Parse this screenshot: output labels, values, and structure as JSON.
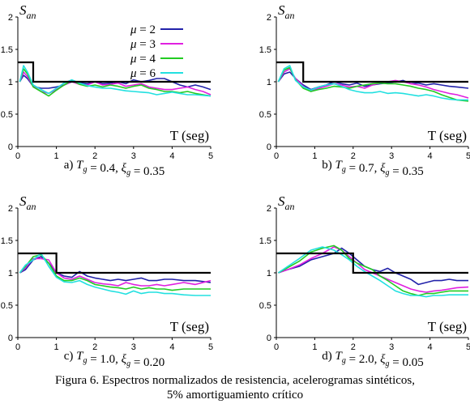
{
  "figure": {
    "caption_line1": "Figura 6.   Espectros normalizados de resistencia, acelerogramas sintéticos,",
    "caption_line2": "5% amortiguamiento crítico"
  },
  "colors": {
    "mu2": "#2222aa",
    "mu3": "#e020e0",
    "mu4": "#22cc22",
    "mu6": "#22e0e0",
    "design": "#000000"
  },
  "legend": [
    "μ = 2",
    "μ = 3",
    "μ = 4",
    "μ = 6"
  ],
  "chart_data": [
    {
      "type": "line",
      "id": "a",
      "ylabel": "S_an",
      "xlabel": "T (seg)",
      "subtitle": "a) T_g = 0.4, ξ_g = 0.35",
      "xlim": [
        0,
        5
      ],
      "ylim": [
        0,
        2
      ],
      "xticks": [
        "0",
        "1",
        "2",
        "3",
        "4",
        "5"
      ],
      "yticks": [
        "0",
        "0.5",
        "1",
        "1.5",
        "2"
      ],
      "legend_placement": "top-right",
      "design": {
        "x": [
          0,
          0.4,
          0.4,
          5
        ],
        "y": [
          1.3,
          1.3,
          1.0,
          1.0
        ]
      },
      "series": [
        {
          "name": "μ = 2",
          "color": "#2222aa",
          "x": [
            0.05,
            0.15,
            0.25,
            0.4,
            0.6,
            0.8,
            1.0,
            1.2,
            1.4,
            1.6,
            1.8,
            2.0,
            2.2,
            2.4,
            2.6,
            2.8,
            3.0,
            3.2,
            3.4,
            3.6,
            3.8,
            4.0,
            4.2,
            4.4,
            4.6,
            4.8,
            5.0
          ],
          "y": [
            1.0,
            1.1,
            1.05,
            0.93,
            0.9,
            0.9,
            0.92,
            0.95,
            1.0,
            0.98,
            0.97,
            1.0,
            0.97,
            0.98,
            1.0,
            0.97,
            1.03,
            1.0,
            1.02,
            1.05,
            1.05,
            1.0,
            0.95,
            0.92,
            0.95,
            0.92,
            0.88
          ]
        },
        {
          "name": "μ = 3",
          "color": "#e020e0",
          "x": [
            0.05,
            0.15,
            0.25,
            0.4,
            0.6,
            0.8,
            1.0,
            1.2,
            1.4,
            1.6,
            1.8,
            2.0,
            2.2,
            2.4,
            2.6,
            2.8,
            3.0,
            3.2,
            3.4,
            3.6,
            3.8,
            4.0,
            4.2,
            4.4,
            4.6,
            4.8,
            5.0
          ],
          "y": [
            1.0,
            1.15,
            1.08,
            0.93,
            0.85,
            0.82,
            0.88,
            0.95,
            1.0,
            0.96,
            0.95,
            1.0,
            0.95,
            0.96,
            0.98,
            0.93,
            0.95,
            0.97,
            0.92,
            0.9,
            0.88,
            0.88,
            0.9,
            0.92,
            0.88,
            0.85,
            0.8
          ]
        },
        {
          "name": "μ = 4",
          "color": "#22cc22",
          "x": [
            0.05,
            0.15,
            0.25,
            0.4,
            0.6,
            0.8,
            1.0,
            1.2,
            1.4,
            1.6,
            1.8,
            2.0,
            2.2,
            2.4,
            2.6,
            2.8,
            3.0,
            3.2,
            3.4,
            3.6,
            3.8,
            4.0,
            4.2,
            4.4,
            4.6,
            4.8,
            5.0
          ],
          "y": [
            1.0,
            1.2,
            1.12,
            0.92,
            0.85,
            0.78,
            0.87,
            0.95,
            1.02,
            0.96,
            0.93,
            0.95,
            0.92,
            0.95,
            0.93,
            0.9,
            0.93,
            0.95,
            0.9,
            0.88,
            0.85,
            0.85,
            0.83,
            0.85,
            0.82,
            0.8,
            0.78
          ]
        },
        {
          "name": "μ = 6",
          "color": "#22e0e0",
          "x": [
            0.05,
            0.15,
            0.25,
            0.4,
            0.6,
            0.8,
            1.0,
            1.2,
            1.4,
            1.6,
            1.8,
            2.0,
            2.2,
            2.4,
            2.6,
            2.8,
            3.0,
            3.2,
            3.4,
            3.6,
            3.8,
            4.0,
            4.2,
            4.4,
            4.6,
            4.8,
            5.0
          ],
          "y": [
            1.0,
            1.25,
            1.15,
            0.95,
            0.88,
            0.82,
            0.9,
            0.98,
            1.03,
            0.98,
            0.94,
            0.92,
            0.9,
            0.9,
            0.88,
            0.86,
            0.85,
            0.84,
            0.83,
            0.8,
            0.82,
            0.84,
            0.82,
            0.8,
            0.8,
            0.79,
            0.78
          ]
        }
      ]
    },
    {
      "type": "line",
      "id": "b",
      "ylabel": "S_an",
      "xlabel": "T (seg)",
      "subtitle": "b) T_g = 0.7, ξ_g = 0.35",
      "xlim": [
        0,
        5
      ],
      "ylim": [
        0,
        2
      ],
      "xticks": [
        "0",
        "1",
        "2",
        "3",
        "4",
        "5"
      ],
      "yticks": [
        "0",
        "0.5",
        "1",
        "1.5",
        "2"
      ],
      "design": {
        "x": [
          0,
          0.7,
          0.7,
          5
        ],
        "y": [
          1.3,
          1.3,
          1.0,
          1.0
        ]
      },
      "series": [
        {
          "name": "μ = 2",
          "color": "#2222aa",
          "x": [
            0.05,
            0.2,
            0.35,
            0.5,
            0.7,
            0.9,
            1.1,
            1.3,
            1.5,
            1.7,
            1.9,
            2.1,
            2.3,
            2.5,
            2.7,
            2.9,
            3.1,
            3.3,
            3.5,
            3.7,
            3.9,
            4.1,
            4.3,
            4.5,
            4.7,
            5.0
          ],
          "y": [
            1.0,
            1.12,
            1.15,
            1.05,
            0.95,
            0.88,
            0.92,
            0.95,
            1.0,
            0.97,
            0.95,
            0.98,
            0.93,
            0.95,
            0.97,
            0.98,
            1.0,
            1.02,
            0.97,
            0.98,
            0.95,
            0.97,
            0.95,
            0.93,
            0.92,
            0.9
          ]
        },
        {
          "name": "μ = 3",
          "color": "#e020e0",
          "x": [
            0.05,
            0.2,
            0.35,
            0.5,
            0.7,
            0.9,
            1.1,
            1.3,
            1.5,
            1.7,
            1.9,
            2.1,
            2.3,
            2.5,
            2.7,
            2.9,
            3.1,
            3.3,
            3.5,
            3.7,
            3.9,
            4.1,
            4.3,
            4.5,
            4.7,
            5.0
          ],
          "y": [
            1.0,
            1.15,
            1.2,
            1.05,
            0.93,
            0.85,
            0.9,
            0.93,
            0.97,
            0.95,
            0.92,
            0.93,
            0.9,
            0.95,
            0.98,
            1.0,
            1.02,
            1.0,
            0.97,
            0.95,
            0.92,
            0.88,
            0.85,
            0.82,
            0.8,
            0.75
          ]
        },
        {
          "name": "μ = 4",
          "color": "#22cc22",
          "x": [
            0.05,
            0.2,
            0.35,
            0.5,
            0.7,
            0.9,
            1.1,
            1.3,
            1.5,
            1.7,
            1.9,
            2.1,
            2.3,
            2.5,
            2.7,
            2.9,
            3.1,
            3.3,
            3.5,
            3.7,
            3.9,
            4.1,
            4.3,
            4.5,
            4.7,
            5.0
          ],
          "y": [
            1.0,
            1.18,
            1.22,
            1.03,
            0.9,
            0.85,
            0.88,
            0.9,
            0.93,
            0.92,
            0.9,
            0.93,
            0.95,
            0.97,
            0.98,
            0.97,
            0.97,
            0.95,
            0.93,
            0.9,
            0.88,
            0.85,
            0.8,
            0.76,
            0.72,
            0.7
          ]
        },
        {
          "name": "μ = 6",
          "color": "#22e0e0",
          "x": [
            0.05,
            0.2,
            0.35,
            0.5,
            0.7,
            0.9,
            1.1,
            1.3,
            1.5,
            1.7,
            1.9,
            2.1,
            2.3,
            2.5,
            2.7,
            2.9,
            3.1,
            3.3,
            3.5,
            3.7,
            3.9,
            4.1,
            4.3,
            4.5,
            4.7,
            5.0
          ],
          "y": [
            1.0,
            1.2,
            1.25,
            1.02,
            0.92,
            0.87,
            0.92,
            0.95,
            0.97,
            0.93,
            0.88,
            0.85,
            0.83,
            0.83,
            0.85,
            0.82,
            0.83,
            0.82,
            0.8,
            0.78,
            0.8,
            0.78,
            0.75,
            0.73,
            0.72,
            0.72
          ]
        }
      ]
    },
    {
      "type": "line",
      "id": "c",
      "ylabel": "S_an",
      "xlabel": "T (seg)",
      "subtitle": "c) T_g = 1.0, ξ_g = 0.20",
      "xlim": [
        0,
        5
      ],
      "ylim": [
        0,
        2
      ],
      "xticks": [
        "0",
        "1",
        "2",
        "3",
        "4",
        "5"
      ],
      "yticks": [
        "0",
        "0.5",
        "1",
        "1.5",
        "2"
      ],
      "design": {
        "x": [
          0,
          1.0,
          1.0,
          5
        ],
        "y": [
          1.3,
          1.3,
          1.0,
          1.0
        ]
      },
      "series": [
        {
          "name": "μ = 2",
          "color": "#2222aa",
          "x": [
            0.05,
            0.2,
            0.4,
            0.6,
            0.8,
            1.0,
            1.2,
            1.4,
            1.6,
            1.8,
            2.0,
            2.2,
            2.4,
            2.6,
            2.8,
            3.0,
            3.2,
            3.4,
            3.6,
            3.8,
            4.0,
            4.3,
            4.6,
            5.0
          ],
          "y": [
            1.0,
            1.05,
            1.2,
            1.25,
            1.15,
            1.0,
            0.95,
            0.93,
            1.02,
            0.95,
            0.92,
            0.9,
            0.88,
            0.9,
            0.88,
            0.9,
            0.92,
            0.88,
            0.88,
            0.9,
            0.9,
            0.88,
            0.88,
            0.85
          ]
        },
        {
          "name": "μ = 3",
          "color": "#e020e0",
          "x": [
            0.05,
            0.2,
            0.4,
            0.6,
            0.8,
            1.0,
            1.2,
            1.4,
            1.6,
            1.8,
            2.0,
            2.2,
            2.4,
            2.6,
            2.8,
            3.0,
            3.2,
            3.4,
            3.6,
            3.8,
            4.0,
            4.3,
            4.6,
            5.0
          ],
          "y": [
            1.0,
            1.08,
            1.22,
            1.22,
            1.2,
            1.0,
            0.92,
            0.9,
            0.95,
            0.9,
            0.85,
            0.83,
            0.82,
            0.8,
            0.85,
            0.82,
            0.8,
            0.8,
            0.82,
            0.8,
            0.82,
            0.85,
            0.82,
            0.88
          ]
        },
        {
          "name": "μ = 4",
          "color": "#22cc22",
          "x": [
            0.05,
            0.2,
            0.4,
            0.6,
            0.8,
            1.0,
            1.2,
            1.4,
            1.6,
            1.8,
            2.0,
            2.2,
            2.4,
            2.6,
            2.8,
            3.0,
            3.2,
            3.4,
            3.6,
            3.8,
            4.0,
            4.3,
            4.6,
            5.0
          ],
          "y": [
            1.0,
            1.1,
            1.25,
            1.28,
            1.15,
            0.95,
            0.88,
            0.88,
            0.92,
            0.88,
            0.82,
            0.8,
            0.78,
            0.77,
            0.75,
            0.78,
            0.75,
            0.77,
            0.75,
            0.75,
            0.73,
            0.75,
            0.75,
            0.75
          ]
        },
        {
          "name": "μ = 6",
          "color": "#22e0e0",
          "x": [
            0.05,
            0.2,
            0.4,
            0.6,
            0.8,
            1.0,
            1.2,
            1.4,
            1.6,
            1.8,
            2.0,
            2.2,
            2.4,
            2.6,
            2.8,
            3.0,
            3.2,
            3.4,
            3.6,
            3.8,
            4.0,
            4.3,
            4.6,
            5.0
          ],
          "y": [
            1.0,
            1.12,
            1.2,
            1.3,
            1.1,
            0.93,
            0.86,
            0.85,
            0.88,
            0.82,
            0.78,
            0.75,
            0.72,
            0.7,
            0.67,
            0.72,
            0.68,
            0.7,
            0.7,
            0.68,
            0.68,
            0.66,
            0.65,
            0.65
          ]
        }
      ]
    },
    {
      "type": "line",
      "id": "d",
      "ylabel": "S_an",
      "xlabel": "T (seg)",
      "subtitle": "d) T_g = 2.0, ξ_g = 0.05",
      "xlim": [
        0,
        5
      ],
      "ylim": [
        0,
        2
      ],
      "xticks": [
        "0",
        "1",
        "2",
        "3",
        "4",
        "5"
      ],
      "yticks": [
        "0",
        "0.5",
        "1",
        "1.5",
        "2"
      ],
      "design": {
        "x": [
          0,
          2.0,
          2.0,
          5
        ],
        "y": [
          1.3,
          1.3,
          1.0,
          1.0
        ]
      },
      "series": [
        {
          "name": "μ = 2",
          "color": "#2222aa",
          "x": [
            0.05,
            0.3,
            0.6,
            0.9,
            1.2,
            1.5,
            1.7,
            1.9,
            2.1,
            2.3,
            2.5,
            2.7,
            2.9,
            3.1,
            3.3,
            3.5,
            3.7,
            3.9,
            4.1,
            4.3,
            4.5,
            4.7,
            5.0
          ],
          "y": [
            1.0,
            1.05,
            1.1,
            1.2,
            1.25,
            1.3,
            1.38,
            1.3,
            1.2,
            1.1,
            1.05,
            1.02,
            1.07,
            1.0,
            0.95,
            0.9,
            0.82,
            0.85,
            0.88,
            0.88,
            0.9,
            0.88,
            0.88
          ]
        },
        {
          "name": "μ = 3",
          "color": "#e020e0",
          "x": [
            0.05,
            0.3,
            0.6,
            0.9,
            1.2,
            1.5,
            1.7,
            1.9,
            2.1,
            2.3,
            2.5,
            2.7,
            2.9,
            3.1,
            3.3,
            3.5,
            3.7,
            3.9,
            4.1,
            4.3,
            4.5,
            4.7,
            5.0
          ],
          "y": [
            1.0,
            1.05,
            1.12,
            1.22,
            1.3,
            1.4,
            1.35,
            1.25,
            1.15,
            1.05,
            1.0,
            0.95,
            0.9,
            0.85,
            0.8,
            0.75,
            0.72,
            0.7,
            0.72,
            0.73,
            0.75,
            0.77,
            0.78
          ]
        },
        {
          "name": "μ = 4",
          "color": "#22cc22",
          "x": [
            0.05,
            0.3,
            0.6,
            0.9,
            1.2,
            1.5,
            1.7,
            1.9,
            2.1,
            2.3,
            2.5,
            2.7,
            2.9,
            3.1,
            3.3,
            3.5,
            3.7,
            3.9,
            4.1,
            4.3,
            4.5,
            4.7,
            5.0
          ],
          "y": [
            1.0,
            1.08,
            1.18,
            1.32,
            1.38,
            1.42,
            1.35,
            1.22,
            1.15,
            1.1,
            1.05,
            0.95,
            0.88,
            0.8,
            0.72,
            0.68,
            0.65,
            0.68,
            0.68,
            0.7,
            0.72,
            0.72,
            0.72
          ]
        },
        {
          "name": "μ = 6",
          "color": "#22e0e0",
          "x": [
            0.05,
            0.3,
            0.6,
            0.9,
            1.2,
            1.5,
            1.7,
            1.9,
            2.1,
            2.3,
            2.5,
            2.7,
            2.9,
            3.1,
            3.3,
            3.5,
            3.7,
            3.9,
            4.1,
            4.3,
            4.5,
            4.7,
            5.0
          ],
          "y": [
            1.0,
            1.1,
            1.22,
            1.35,
            1.4,
            1.35,
            1.28,
            1.2,
            1.1,
            1.02,
            0.95,
            0.88,
            0.8,
            0.72,
            0.68,
            0.65,
            0.65,
            0.63,
            0.65,
            0.65,
            0.66,
            0.66,
            0.66
          ]
        }
      ]
    }
  ]
}
